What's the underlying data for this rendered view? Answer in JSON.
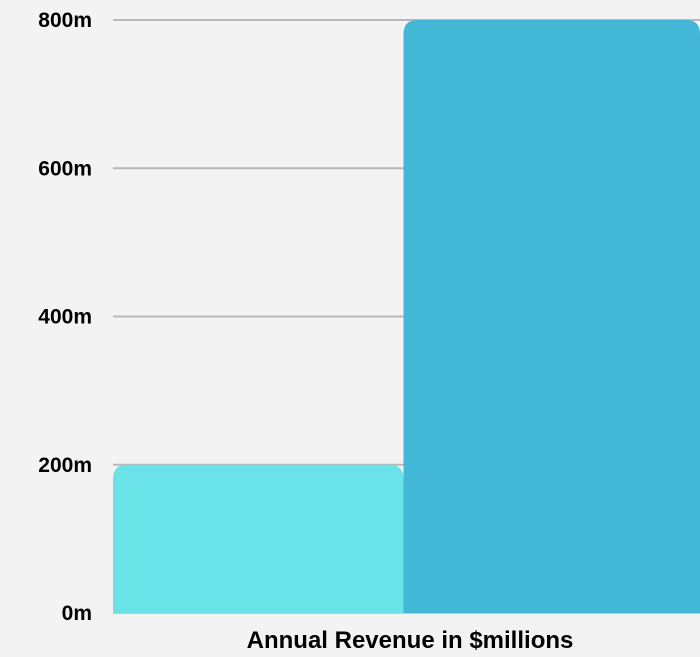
{
  "chart_data": {
    "type": "bar",
    "categories": [
      "",
      ""
    ],
    "values": [
      200,
      800
    ],
    "colors": [
      "#6ae3e8",
      "#42b7d6"
    ],
    "title": "",
    "xlabel": "Annual Revenue in $millions",
    "ylabel": "",
    "ylim": [
      0,
      800
    ],
    "yticks": [
      {
        "value": 0,
        "label": "0m"
      },
      {
        "value": 200,
        "label": "200m"
      },
      {
        "value": 400,
        "label": "400m"
      },
      {
        "value": 600,
        "label": "600m"
      },
      {
        "value": 800,
        "label": "800m"
      }
    ],
    "grid": true,
    "background": "#f3f3f3",
    "grid_color": "#b8b8b8"
  }
}
